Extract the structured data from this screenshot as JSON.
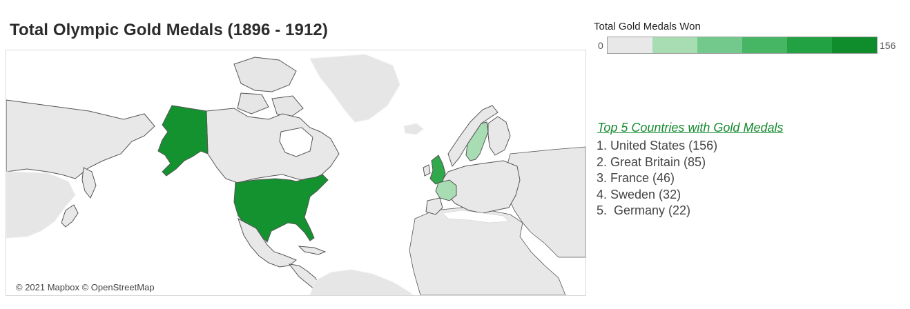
{
  "title": "Total Olympic Gold Medals (1896 - 1912)",
  "legend": {
    "title": "Total Gold Medals Won",
    "min_label": "0",
    "max_label": "156",
    "colors": [
      "#e8e8e8",
      "#a8dcb3",
      "#73c98c",
      "#46b665",
      "#22a242",
      "#0f8c2c"
    ]
  },
  "top5": {
    "title": "Top 5 Countries with Gold Medals",
    "items": [
      "1. United States (156)",
      "2. Great Britain (85)",
      "3. France (46)",
      "4. Sweden (32)",
      "5.  Germany (22)"
    ]
  },
  "map": {
    "attribution": "© 2021 Mapbox © OpenStreetMap",
    "countries": [
      {
        "name": "United States",
        "gold": 156,
        "color": "#14922f"
      },
      {
        "name": "Great Britain",
        "gold": 85,
        "color": "#30a84c"
      },
      {
        "name": "France",
        "gold": 46,
        "color": "#a8dcb3"
      },
      {
        "name": "Sweden",
        "gold": 32,
        "color": "#a8dcb3"
      },
      {
        "name": "Germany",
        "gold": 22,
        "color": "#e8e8e8"
      }
    ]
  }
}
